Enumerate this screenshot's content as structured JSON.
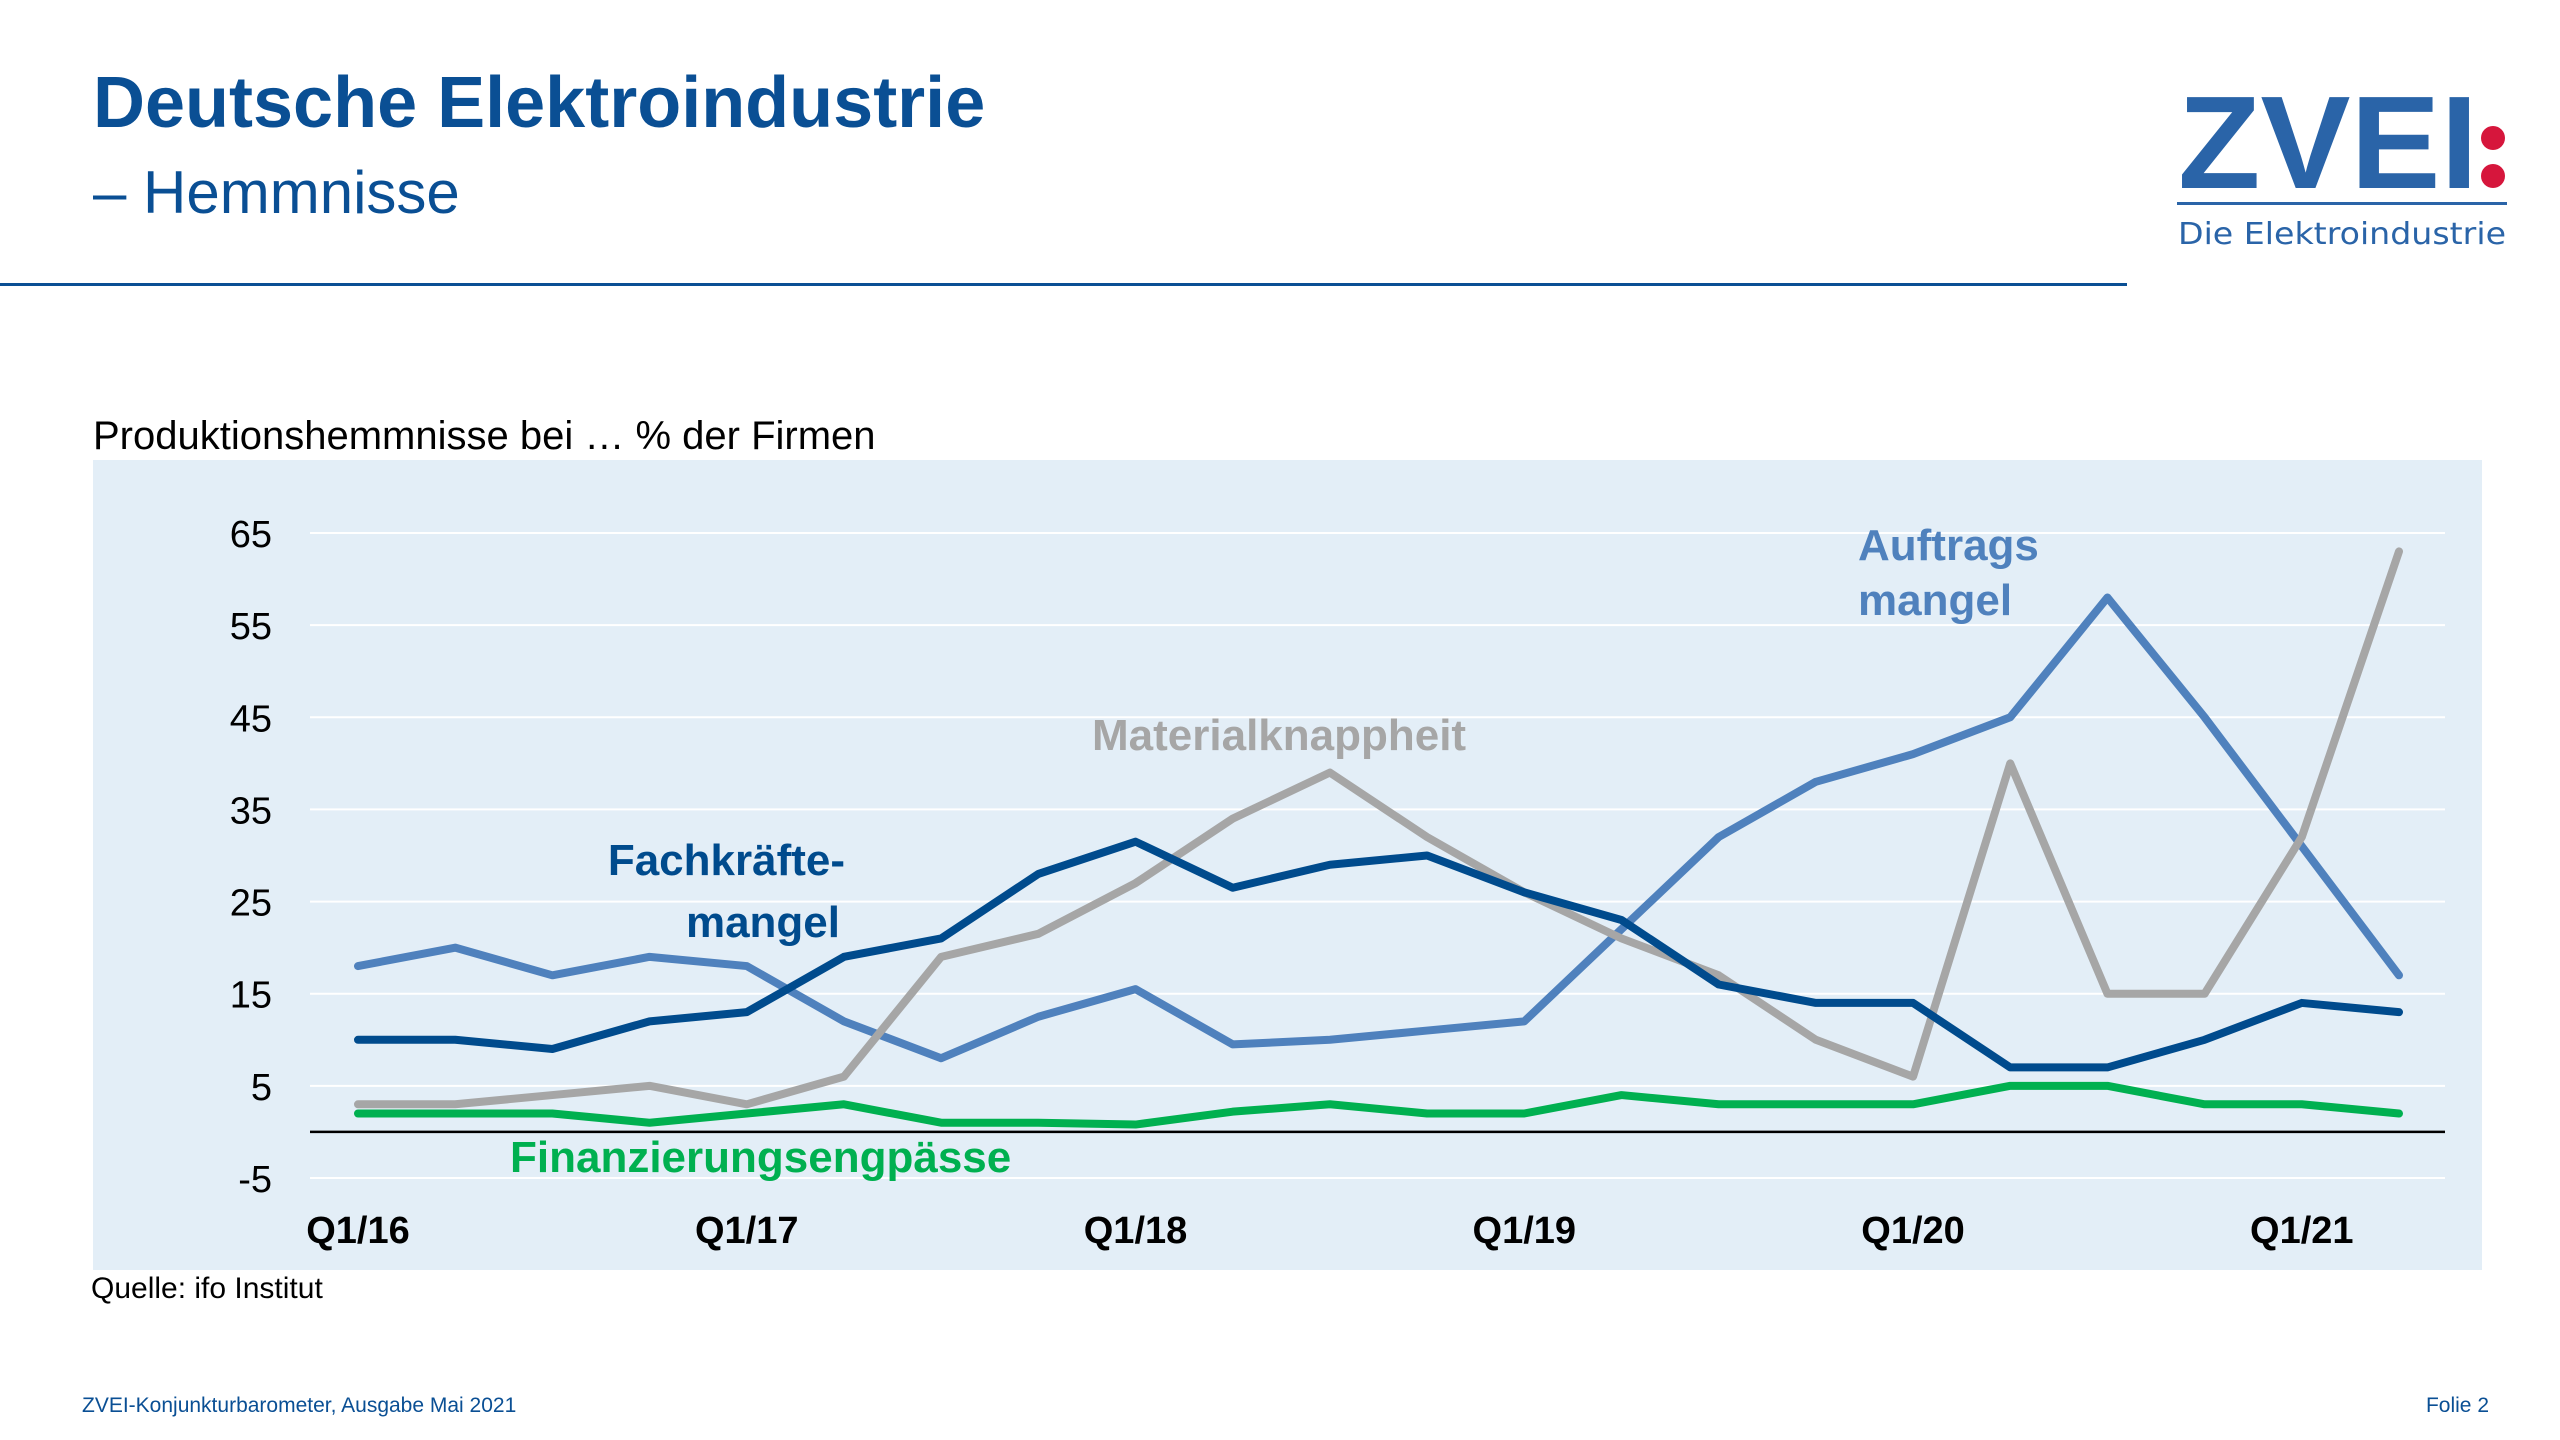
{
  "header": {
    "title": "Deutsche Elektroindustrie",
    "subtitle": "– Hemmnisse"
  },
  "logo": {
    "text": "ZVEI",
    "tagline": "Die Elektroindustrie",
    "colors": {
      "blue": "#2a64a8",
      "red": "#d6163c"
    }
  },
  "footer": {
    "left": "ZVEI-Konjunkturbarometer, Ausgabe Mai 2021",
    "right": "Folie 2"
  },
  "chart_data": {
    "type": "line",
    "title": "Produktionshemmnisse bei … % der Firmen",
    "source": "Quelle: ifo Institut",
    "ylim": [
      -5,
      65
    ],
    "yticks": [
      "65",
      "55",
      "45",
      "35",
      "25",
      "15",
      "5",
      "-5"
    ],
    "xtick_labels": [
      "Q1/16",
      "Q1/17",
      "Q1/18",
      "Q1/19",
      "Q1/20",
      "Q1/21"
    ],
    "grid": true,
    "background": "#e3eef7",
    "x": [
      "Q1/16",
      "Q2/16",
      "Q3/16",
      "Q4/16",
      "Q1/17",
      "Q2/17",
      "Q3/17",
      "Q4/17",
      "Q1/18",
      "Q2/18",
      "Q3/18",
      "Q4/18",
      "Q1/19",
      "Q2/19",
      "Q3/19",
      "Q4/19",
      "Q1/20",
      "Q2/20",
      "Q3/20",
      "Q4/20",
      "Q1/21",
      "Q2/21"
    ],
    "series": [
      {
        "name": "Auftrags mangel",
        "label_lines": [
          "Auftrags",
          "mangel"
        ],
        "color": "#4f81bd",
        "values": [
          18,
          20,
          17,
          19,
          18,
          12,
          8,
          12.5,
          15.5,
          9.5,
          10,
          11,
          12,
          22,
          32,
          38,
          41,
          45,
          58,
          45,
          31,
          17
        ]
      },
      {
        "name": "Materialknappheit",
        "label_lines": [
          "Materialknappheit"
        ],
        "color": "#a6a6a6",
        "values": [
          3,
          3,
          4,
          5,
          3,
          6,
          19,
          21.5,
          27,
          34,
          39,
          32,
          26,
          21,
          17,
          10,
          6,
          40,
          15,
          15,
          32,
          63
        ]
      },
      {
        "name": "Fachkräfte- mangel",
        "label_lines": [
          "Fachkräfte-",
          "mangel"
        ],
        "color": "#004b8d",
        "values": [
          10,
          10,
          9,
          12,
          13,
          19,
          21,
          28,
          31.5,
          26.5,
          29,
          30,
          26,
          23,
          16,
          14,
          14,
          7,
          7,
          10,
          14,
          13
        ]
      },
      {
        "name": "Finanzierungsengpässe",
        "label_lines": [
          "Finanzierungsengpässe"
        ],
        "color": "#00b050",
        "values": [
          2,
          2,
          2,
          1,
          2,
          3,
          1,
          1,
          0.8,
          2.2,
          3,
          2,
          2,
          4,
          3,
          3,
          3,
          5,
          5,
          3,
          3,
          2
        ]
      }
    ]
  }
}
